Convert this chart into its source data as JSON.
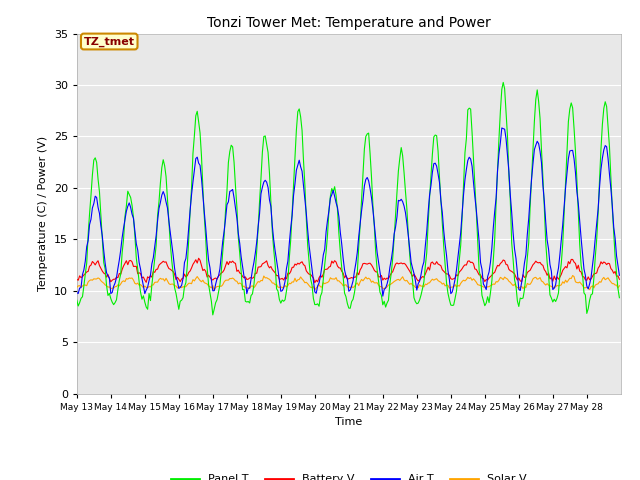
{
  "title": "Tonzi Tower Met: Temperature and Power",
  "xlabel": "Time",
  "ylabel": "Temperature (C) / Power (V)",
  "ylim": [
    0,
    35
  ],
  "yticks": [
    0,
    5,
    10,
    15,
    20,
    25,
    30,
    35
  ],
  "bg_color": "#e8e8e8",
  "plot_bg_color": "#e8e8e8",
  "fig_color": "#ffffff",
  "annotation_text": "TZ_tmet",
  "annotation_bg": "#ffffcc",
  "annotation_border": "#cc8800",
  "annotation_text_color": "#880000",
  "legend_entries": [
    "Panel T",
    "Battery V",
    "Air T",
    "Solar V"
  ],
  "line_colors": [
    "#00ee00",
    "#ff0000",
    "#0000ff",
    "#ffa500"
  ],
  "num_days": 16,
  "start_day": 13,
  "panel_peaks": [
    23.0,
    19.5,
    22.5,
    27.5,
    24.0,
    25.2,
    27.5,
    20.5,
    25.5,
    23.5,
    25.5,
    27.8,
    30.2,
    29.0,
    28.5
  ],
  "air_peaks": [
    18.9,
    18.5,
    19.5,
    23.0,
    20.0,
    21.0,
    22.5,
    19.5,
    21.0,
    19.0,
    22.5,
    22.8,
    26.0,
    24.8,
    24.0
  ],
  "base_night": 9.5,
  "panel_night": 8.5,
  "batt_base": 11.0,
  "batt_peak": 12.8,
  "solar_base": 10.3,
  "solar_peak": 11.2
}
